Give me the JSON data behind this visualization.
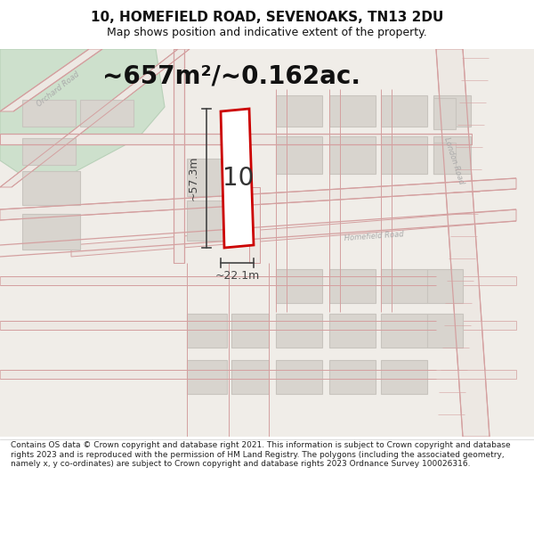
{
  "title_line1": "10, HOMEFIELD ROAD, SEVENOAKS, TN13 2DU",
  "title_line2": "Map shows position and indicative extent of the property.",
  "area_text": "~657m²/~0.162ac.",
  "label_10": "10",
  "dim_vertical": "~57.3m",
  "dim_horizontal": "~22.1m",
  "footer_text": "Contains OS data © Crown copyright and database right 2021. This information is subject to Crown copyright and database rights 2023 and is reproduced with the permission of HM Land Registry. The polygons (including the associated geometry, namely x, y co-ordinates) are subject to Crown copyright and database rights 2023 Ordnance Survey 100026316.",
  "map_bg": "#f0ede8",
  "road_line_color": "#d4a0a0",
  "road_fill_color": "#ede8e3",
  "block_color": "#d8d4ce",
  "block_edge": "#c8c4be",
  "highlight_color": "#cc0000",
  "highlight_fill": "#ffffff",
  "green_fill": "#cde0cc",
  "green_edge": "#b8d0b8",
  "dim_color": "#444444",
  "title_color": "#111111",
  "footer_color": "#222222",
  "road_label_color": "#aaaaaa",
  "number_color": "#333333",
  "area_color": "#111111",
  "title_fontsize": 11,
  "subtitle_fontsize": 9,
  "area_fontsize": 20,
  "label_fontsize": 20,
  "dim_fontsize": 9,
  "road_label_fontsize": 6,
  "footer_fontsize": 6.5
}
